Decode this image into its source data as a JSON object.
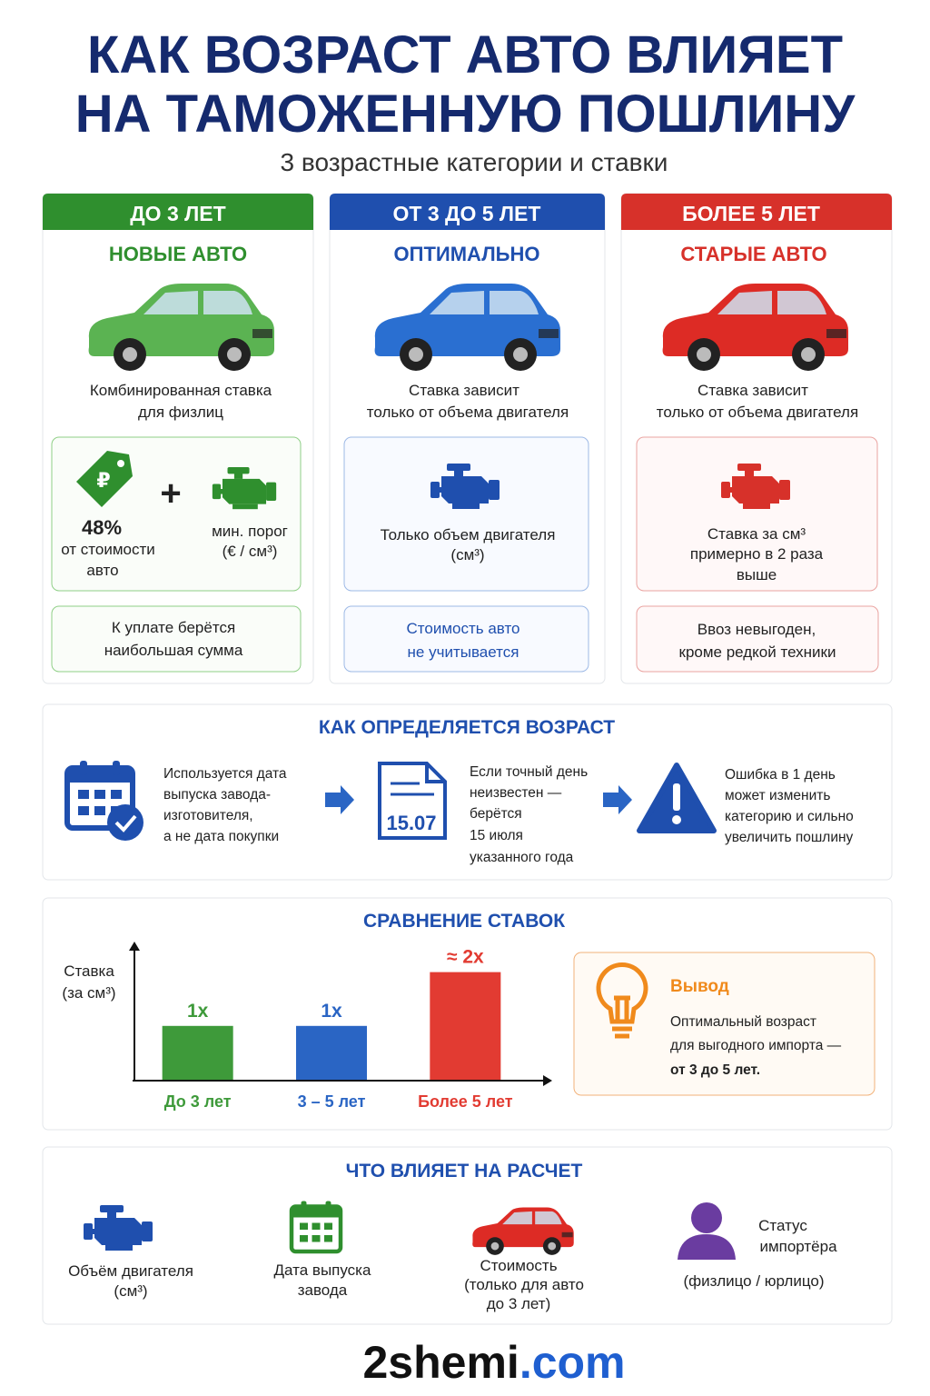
{
  "header": {
    "title": [
      "КАК ВОЗРАСТ АВТО ВЛИЯЕТ",
      "НА ТАМОЖЕННУЮ ПОШЛИНУ"
    ],
    "subtitle": "3 возрастные категории и ставки"
  },
  "columns": [
    {
      "heading": "ДО 3 ЛЕТ",
      "subheading": "НОВЫЕ АВТО",
      "description": [
        "Комбинированная ставка",
        "для физлиц"
      ],
      "box": {
        "percent": "48%",
        "percent_text": [
          "от стоимости",
          "авто"
        ],
        "threshold": [
          "мин. порог",
          "(€ / см³)"
        ]
      },
      "note": [
        "К уплате берётся",
        "наибольшая сумма"
      ]
    },
    {
      "heading": "ОТ 3 ДО 5 ЛЕТ",
      "subheading": "ОПТИМАЛЬНО",
      "description": [
        "Ставка зависит",
        "только от объема двигателя"
      ],
      "box": {
        "text": [
          "Только объем двигателя",
          "(см³)"
        ]
      },
      "note": [
        "Стоимость авто",
        "не учитывается"
      ]
    },
    {
      "heading": "БОЛЕЕ 5 ЛЕТ",
      "subheading": "СТАРЫЕ АВТО",
      "description": [
        "Ставка зависит",
        "только от объема двигателя"
      ],
      "box": {
        "text": [
          "Ставка за см³",
          "примерно в 2 раза",
          "выше"
        ]
      },
      "note": [
        "Ввоз невыгоден,",
        "кроме редкой техники"
      ]
    }
  ],
  "age": {
    "title": "КАК ОПРЕДЕЛЯЕТСЯ ВОЗРАСТ",
    "steps": [
      {
        "text": [
          "Используется дата",
          "выпуска завода-",
          "изготовителя,",
          "а не дата покупки"
        ]
      },
      {
        "icon_text": "15.07",
        "text": [
          "Если точный день",
          "неизвестен —",
          "берётся",
          "15 июля",
          "указанного года"
        ]
      },
      {
        "text": [
          "Ошибка в 1 день",
          "может изменить",
          "категорию и сильно",
          "увеличить пошлину"
        ]
      }
    ]
  },
  "chart_data": {
    "type": "bar",
    "title": "СРАВНЕНИЕ СТАВОК",
    "y_label": [
      "Ставка",
      "(за см³)"
    ],
    "categories": [
      "До 3 лет",
      "3 – 5 лет",
      "Более 5 лет"
    ],
    "values": [
      1,
      1,
      2
    ],
    "value_labels": [
      "1x",
      "1x",
      "≈ 2x"
    ],
    "colors": [
      "#3e9a3a",
      "#2a65c4",
      "#e23b32"
    ],
    "ylim": [
      0,
      2.5
    ]
  },
  "conclusion": {
    "title": "Вывод",
    "text": [
      "Оптимальный возраст",
      "для выгодного импорта —",
      "от 3 до 5 лет."
    ]
  },
  "factors": {
    "title": "ЧТО ВЛИЯЕТ НА РАСЧЕТ",
    "items": [
      {
        "label": [
          "Объём двигателя",
          "(см³)"
        ]
      },
      {
        "label": [
          "Дата выпуска",
          "завода"
        ]
      },
      {
        "label": [
          "Стоимость",
          "(только для авто",
          "до 3 лет)"
        ]
      },
      {
        "label": [
          "Статус",
          "импортёра",
          "(физлицо / юрлицо)"
        ]
      }
    ]
  },
  "footer": {
    "brand": "2shemi",
    "domain": ".com"
  }
}
